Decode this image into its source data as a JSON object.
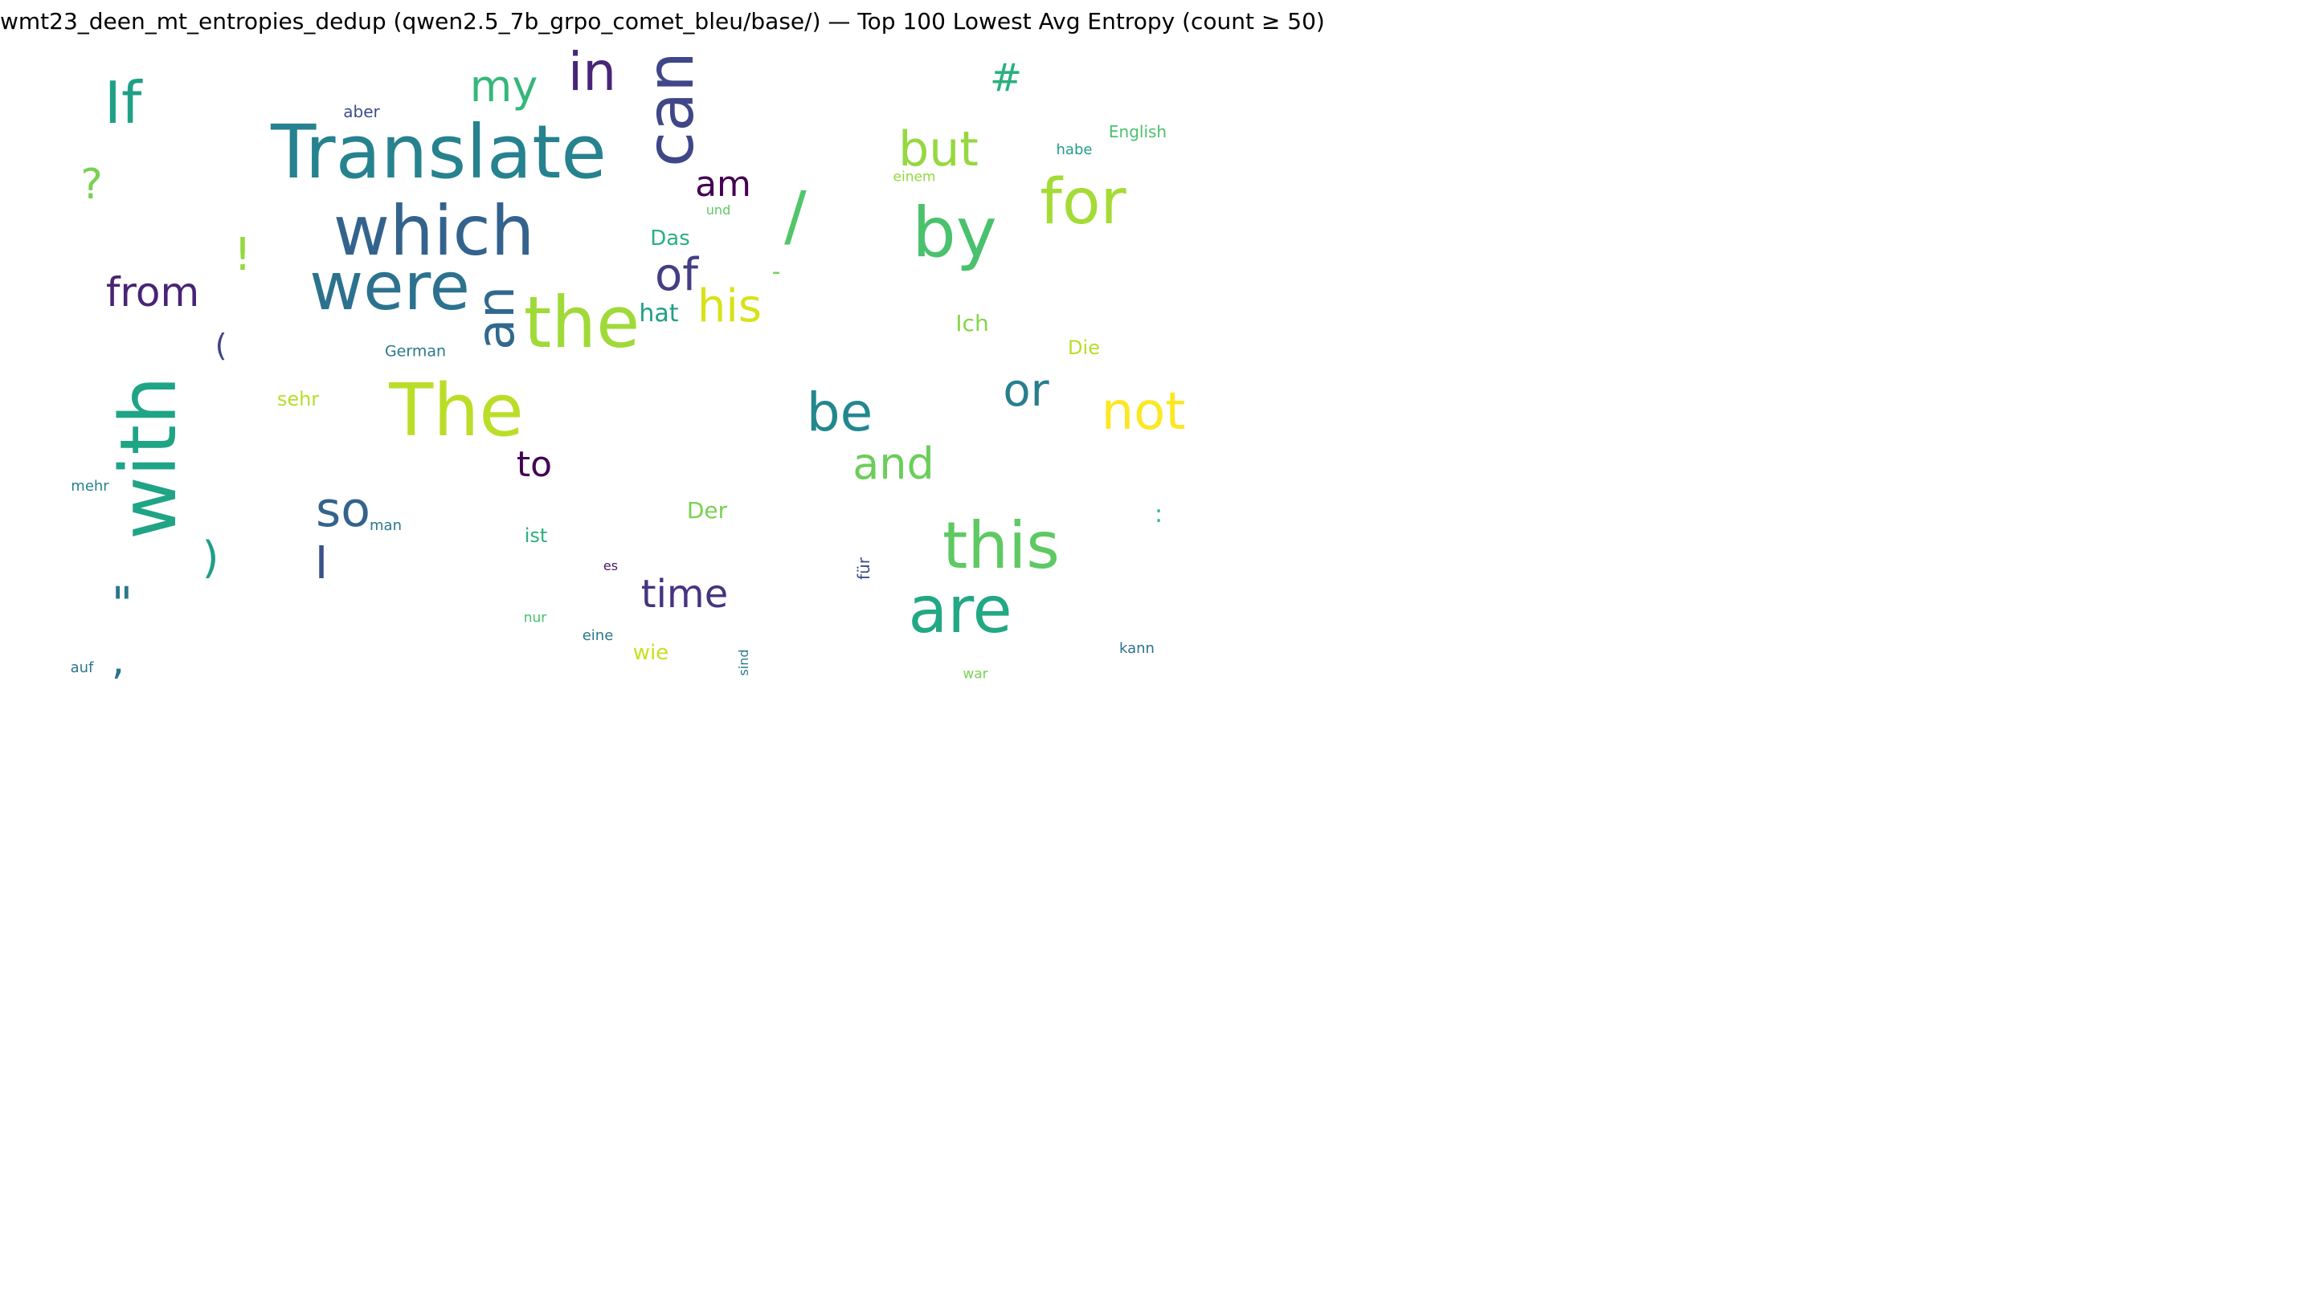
{
  "title": "wmt23_deen_mt_entropies_dedup (qwen2.5_7b_grpo_comet_bleu/base/) — Top 100 Lowest Avg Entropy (count ≥ 50)",
  "words": [
    {
      "text": "Translate",
      "color": "#26828e"
    },
    {
      "text": "which",
      "color": "#33638d"
    },
    {
      "text": "were",
      "color": "#2c728e"
    },
    {
      "text": "The",
      "color": "#bade28"
    },
    {
      "text": "the",
      "color": "#a0da39"
    },
    {
      "text": "with",
      "color": "#20a486"
    },
    {
      "text": "can",
      "color": "#3f4788"
    },
    {
      "text": "an",
      "color": "#31688e"
    },
    {
      "text": "by",
      "color": "#4ac16d"
    },
    {
      "text": "this",
      "color": "#5ec962"
    },
    {
      "text": "are",
      "color": "#22a884"
    },
    {
      "text": "for",
      "color": "#a5db36"
    },
    {
      "text": "If",
      "color": "#1fa187"
    },
    {
      "text": "in",
      "color": "#482677"
    },
    {
      "text": "be",
      "color": "#23888e"
    },
    {
      "text": "not",
      "color": "#fde725"
    },
    {
      "text": "or",
      "color": "#277f8e"
    },
    {
      "text": "but",
      "color": "#95d840"
    },
    {
      "text": "so",
      "color": "#33638d"
    },
    {
      "text": "and",
      "color": "#6ccd5a"
    },
    {
      "text": "time",
      "color": "#463480"
    },
    {
      "text": "from",
      "color": "#482475"
    },
    {
      "text": "my",
      "color": "#35b779"
    },
    {
      "text": "/",
      "color": "#52c569"
    },
    {
      "text": "his",
      "color": "#d8e219"
    },
    {
      "text": "of",
      "color": "#433e85"
    },
    {
      "text": "am",
      "color": "#440154"
    },
    {
      "text": "to",
      "color": "#440154"
    },
    {
      "text": "\"",
      "color": "#2a788e"
    },
    {
      "text": "I",
      "color": "#3b528b"
    },
    {
      "text": "#",
      "color": "#2ab07f"
    },
    {
      "text": "!",
      "color": "#95d840"
    },
    {
      "text": "?",
      "color": "#7ad151"
    },
    {
      "text": ")",
      "color": "#1f9e89"
    },
    {
      "text": ",",
      "color": "#2d708e"
    },
    {
      "text": "(",
      "color": "#414487"
    },
    {
      "text": "Das",
      "color": "#2ab07f"
    },
    {
      "text": "hat",
      "color": "#1f9e89"
    },
    {
      "text": "Der",
      "color": "#7ad151"
    },
    {
      "text": "Ich",
      "color": "#86d549"
    },
    {
      "text": "Die",
      "color": "#b5de2b"
    },
    {
      "text": "ist",
      "color": "#2ab07f"
    },
    {
      "text": "sehr",
      "color": "#b5de2b"
    },
    {
      "text": "-",
      "color": "#75d054"
    },
    {
      "text": "wie",
      "color": "#c8e020"
    },
    {
      "text": ":",
      "color": "#35b779"
    },
    {
      "text": "German",
      "color": "#2a788e"
    },
    {
      "text": "English",
      "color": "#4ac16d"
    },
    {
      "text": "aber",
      "color": "#3e4c8a"
    },
    {
      "text": "man",
      "color": "#2a788e"
    },
    {
      "text": "habe",
      "color": "#1f9e89"
    },
    {
      "text": "mehr",
      "color": "#26828e"
    },
    {
      "text": "eine",
      "color": "#2a788e"
    },
    {
      "text": "kann",
      "color": "#2d708e"
    },
    {
      "text": "nur",
      "color": "#4ac16d"
    },
    {
      "text": "auf",
      "color": "#2a788e"
    },
    {
      "text": "für",
      "color": "#3e4c8a"
    },
    {
      "text": "sind",
      "color": "#2a788e"
    },
    {
      "text": "einem",
      "color": "#95d840"
    },
    {
      "text": "und",
      "color": "#5ec962"
    },
    {
      "text": "es",
      "color": "#481769"
    },
    {
      "text": "war",
      "color": "#7ad151"
    }
  ]
}
